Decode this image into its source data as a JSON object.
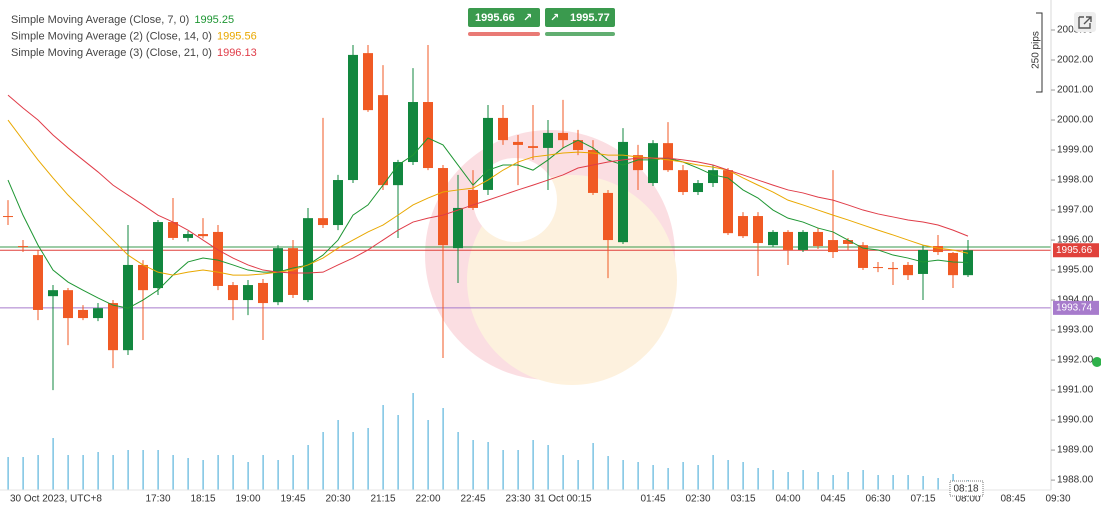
{
  "chart_data": {
    "type": "candlestick",
    "categories": [
      "30 Oct 2023, UTC+8",
      null,
      null,
      null,
      null,
      null,
      null,
      null,
      null,
      null,
      "17:30",
      null,
      null,
      "18:15",
      null,
      null,
      "19:00",
      null,
      null,
      "19:45",
      null,
      null,
      "20:30",
      null,
      null,
      "21:15",
      null,
      null,
      "22:00",
      null,
      null,
      "22:45",
      null,
      null,
      "23:30",
      null,
      null,
      "31 Oct 00:15",
      null,
      null,
      null,
      null,
      null,
      "01:45",
      null,
      null,
      "02:30",
      null,
      null,
      "03:15",
      null,
      null,
      "04:00",
      null,
      null,
      "04:45",
      null,
      null,
      "06:30",
      null,
      null,
      "07:15",
      null,
      null,
      "08:00",
      null,
      null,
      "08:45",
      null,
      null,
      "09:30"
    ],
    "open": [
      1996.8,
      1995.8,
      1995.5,
      1994.13,
      1994.33,
      1993.67,
      1993.4,
      1993.9,
      1992.33,
      1995.17,
      1994.4,
      1996.6,
      1996.07,
      1996.2,
      1996.27,
      1994.5,
      1994.0,
      1994.57,
      1993.93,
      1995.73,
      1994.0,
      1996.73,
      1996.5,
      1998.0,
      2002.23,
      2000.83,
      1997.83,
      1998.6,
      2000.6,
      1998.4,
      1995.73,
      1997.67,
      1997.67,
      2000.07,
      1999.27,
      1999.13,
      1999.07,
      1999.57,
      1999.33,
      1999.0,
      1997.57,
      1995.93,
      1998.83,
      1997.9,
      1999.23,
      1998.33,
      1997.6,
      1997.9,
      1998.33,
      1996.8,
      1996.8,
      1995.83,
      1996.27,
      1995.67,
      1996.27,
      1996.0,
      1996.0,
      1995.83,
      1995.1,
      1995.07,
      1995.17,
      1994.87,
      1995.8,
      1995.57,
      1994.83,
      null,
      null,
      null,
      null,
      null,
      null
    ],
    "high": [
      1997.33,
      1996.0,
      1995.67,
      1994.5,
      1994.4,
      1993.83,
      1993.9,
      1994.0,
      1996.5,
      1995.33,
      1996.67,
      1997.4,
      1996.3,
      1996.73,
      1996.5,
      1994.6,
      1994.67,
      1994.7,
      1995.83,
      1996.0,
      1997.07,
      2000.07,
      1998.17,
      2002.5,
      2002.5,
      2001.83,
      1998.67,
      2001.73,
      2002.5,
      1998.5,
      1998.17,
      1998.33,
      2000.5,
      2000.5,
      1999.5,
      2000.5,
      2000.0,
      2000.67,
      1999.67,
      1999.33,
      1997.67,
      1999.73,
      1999.17,
      1999.33,
      1999.93,
      1998.5,
      1998.0,
      1998.5,
      1998.4,
      1996.93,
      1996.93,
      1996.33,
      1996.33,
      1996.33,
      1996.4,
      1998.33,
      1996.07,
      1995.93,
      1995.27,
      1995.27,
      1995.27,
      1995.83,
      1996.17,
      1995.6,
      1996.0,
      null,
      null,
      null,
      null,
      null,
      null
    ],
    "low": [
      1996.5,
      1995.6,
      1993.33,
      1991.0,
      1992.5,
      1993.33,
      1993.3,
      1991.73,
      1992.17,
      1992.67,
      1994.17,
      1996.0,
      1995.95,
      1996.05,
      1994.33,
      1993.33,
      1993.5,
      1992.67,
      1993.83,
      1994.07,
      1993.93,
      1996.4,
      1996.33,
      1997.9,
      2000.27,
      1997.67,
      1996.07,
      1998.5,
      1998.33,
      1992.07,
      1994.57,
      1997.0,
      1997.5,
      1999.17,
      1997.83,
      1998.67,
      1997.67,
      1999.07,
      1998.83,
      1997.5,
      1994.73,
      1995.87,
      1997.67,
      1997.8,
      1998.27,
      1997.5,
      1997.5,
      1997.77,
      1996.17,
      1996.07,
      1994.8,
      1995.77,
      1995.17,
      1995.6,
      1995.7,
      1995.4,
      1995.67,
      1995.0,
      1994.93,
      1994.5,
      1994.67,
      1994.0,
      1995.5,
      1994.4,
      1994.77,
      null,
      null,
      null,
      null,
      null,
      null
    ],
    "close": [
      1996.78,
      1995.78,
      1993.67,
      1994.33,
      1993.4,
      1993.4,
      1993.73,
      1992.33,
      1995.17,
      1994.33,
      1996.6,
      1996.07,
      1996.2,
      1996.13,
      1994.47,
      1994.0,
      1994.5,
      1993.9,
      1995.73,
      1994.17,
      1996.73,
      1996.5,
      1998.0,
      2002.17,
      2000.33,
      1997.83,
      1998.6,
      2000.6,
      1998.4,
      1995.83,
      1997.07,
      1997.07,
      2000.07,
      1999.33,
      1999.17,
      1999.07,
      1999.57,
      1999.33,
      1999.0,
      1997.57,
      1996.0,
      1999.27,
      1998.33,
      1999.23,
      1998.33,
      1997.6,
      1997.9,
      1998.33,
      1996.23,
      1996.13,
      1995.9,
      1996.27,
      1995.67,
      1996.27,
      1995.8,
      1995.6,
      1995.87,
      1995.07,
      1995.07,
      1995.03,
      1994.83,
      1995.67,
      1995.6,
      1994.83,
      1995.66,
      null,
      null,
      null,
      null,
      null,
      null
    ],
    "volume": [
      33,
      33,
      35,
      52,
      35,
      35,
      38,
      35,
      40,
      40,
      40,
      35,
      32,
      30,
      35,
      35,
      28,
      35,
      30,
      35,
      45,
      58,
      70,
      58,
      62,
      85,
      75,
      97,
      70,
      82,
      58,
      50,
      48,
      40,
      40,
      50,
      45,
      35,
      30,
      47,
      34,
      30,
      28,
      25,
      22,
      28,
      25,
      35,
      30,
      28,
      22,
      20,
      18,
      20,
      18,
      15,
      18,
      20,
      15,
      15,
      15,
      14,
      12,
      16,
      10,
      null,
      null,
      null,
      null,
      null,
      null
    ],
    "volume_ylim": [
      0,
      100
    ],
    "up_color": "#12873f",
    "down_color": "#f05a24",
    "volume_color": "#5ab4dc",
    "series": [
      {
        "name": "Simple Moving Average (Close, 7, 0)",
        "color": "#1e9633",
        "values": [
          1998.0,
          1996.83,
          1995.83,
          1995.0,
          1994.6,
          1994.33,
          1994.07,
          1993.83,
          1993.73,
          1994.0,
          1994.33,
          1994.83,
          1995.27,
          1995.4,
          1995.33,
          1995.17,
          1995.0,
          1994.93,
          1994.93,
          1995.07,
          1995.17,
          1995.5,
          1996.0,
          1996.83,
          1997.17,
          1997.83,
          1998.5,
          1998.83,
          1999.4,
          1999.17,
          1998.5,
          1997.83,
          1998.33,
          1998.5,
          1998.5,
          1998.33,
          1998.67,
          1999.07,
          1999.33,
          1999.07,
          1998.67,
          1998.5,
          1998.67,
          1998.67,
          1998.73,
          1998.6,
          1998.4,
          1998.17,
          1998.07,
          1997.67,
          1997.4,
          1997.0,
          1996.73,
          1996.6,
          1996.4,
          1996.27,
          1996.0,
          1995.73,
          1995.67,
          1995.5,
          1995.4,
          1995.27,
          1995.33,
          1995.27,
          1995.25,
          null,
          null,
          null,
          null,
          null,
          null
        ]
      },
      {
        "name": "Simple Moving Average (2) (Close, 14, 0)",
        "color": "#e9a800",
        "values": [
          2000.0,
          1999.33,
          1998.67,
          1998.07,
          1997.5,
          1997.0,
          1996.5,
          1996.0,
          1995.5,
          1995.17,
          1994.93,
          1994.83,
          1994.93,
          1995.0,
          1994.93,
          1994.83,
          1994.83,
          1994.87,
          1994.93,
          1995.0,
          1995.17,
          1995.4,
          1995.73,
          1996.0,
          1996.27,
          1996.5,
          1996.83,
          1997.17,
          1997.4,
          1997.6,
          1997.67,
          1997.73,
          1998.0,
          1998.33,
          1998.6,
          1998.77,
          1998.83,
          1998.9,
          1998.93,
          1998.9,
          1998.83,
          1998.83,
          1998.77,
          1998.73,
          1998.67,
          1998.6,
          1998.5,
          1998.43,
          1998.33,
          1998.07,
          1997.83,
          1997.6,
          1997.33,
          1997.17,
          1997.0,
          1996.83,
          1996.67,
          1996.5,
          1996.33,
          1996.17,
          1996.0,
          1995.83,
          1995.73,
          1995.67,
          1995.56,
          null,
          null,
          null,
          null,
          null,
          null
        ]
      },
      {
        "name": "Simple Moving Average (3) (Close, 21, 0)",
        "color": "#e03c48",
        "values": [
          2000.83,
          2000.4,
          2000.0,
          1999.5,
          1999.07,
          1998.67,
          1998.27,
          1997.83,
          1997.5,
          1997.17,
          1996.83,
          1996.6,
          1996.33,
          1996.0,
          1995.67,
          1995.4,
          1995.17,
          1995.0,
          1994.93,
          1994.9,
          1994.9,
          1994.93,
          1995.17,
          1995.4,
          1995.67,
          1996.0,
          1996.33,
          1996.6,
          1996.73,
          1996.83,
          1997.0,
          1997.17,
          1997.33,
          1997.5,
          1997.67,
          1997.83,
          1998.0,
          1998.17,
          1998.4,
          1998.5,
          1998.6,
          1998.67,
          1998.73,
          1998.73,
          1998.73,
          1998.67,
          1998.6,
          1998.5,
          1998.33,
          1998.17,
          1998.0,
          1997.83,
          1997.67,
          1997.57,
          1997.43,
          1997.33,
          1997.17,
          1997.0,
          1996.87,
          1996.77,
          1996.67,
          1996.6,
          1996.5,
          1996.33,
          1996.13,
          null,
          null,
          null,
          null,
          null,
          null
        ]
      }
    ],
    "bid": 1995.66,
    "ask": 1995.77,
    "bid_color": "#e0413b",
    "ask_color": "#3a9a4e",
    "alert_line": 1993.74,
    "alert_color": "#a77bcc",
    "ylim": [
      1987.67,
      2004
    ],
    "yticks": [
      {
        "value": 1988,
        "label": "1988.00"
      },
      {
        "value": 1989,
        "label": "1989.00"
      },
      {
        "value": 1990,
        "label": "1990.00"
      },
      {
        "value": 1991,
        "label": "1991.00"
      },
      {
        "value": 1992,
        "label": "1992.00"
      },
      {
        "value": 1993,
        "label": "1993.00"
      },
      {
        "value": 1994,
        "label": "1994.00"
      },
      {
        "value": 1995,
        "label": "1995.00"
      },
      {
        "value": 1996,
        "label": "1996.00"
      },
      {
        "value": 1997,
        "label": "1997.00"
      },
      {
        "value": 1998,
        "label": "1998.00"
      },
      {
        "value": 1999,
        "label": "1999.00"
      },
      {
        "value": 2000,
        "label": "2000.00"
      },
      {
        "value": 2001,
        "label": "2001.00"
      },
      {
        "value": 2002,
        "label": "2002.00"
      },
      {
        "value": 2003,
        "label": "2003.00"
      }
    ],
    "scale_label": "250 pips",
    "cursor_time": "08:18"
  }
}
